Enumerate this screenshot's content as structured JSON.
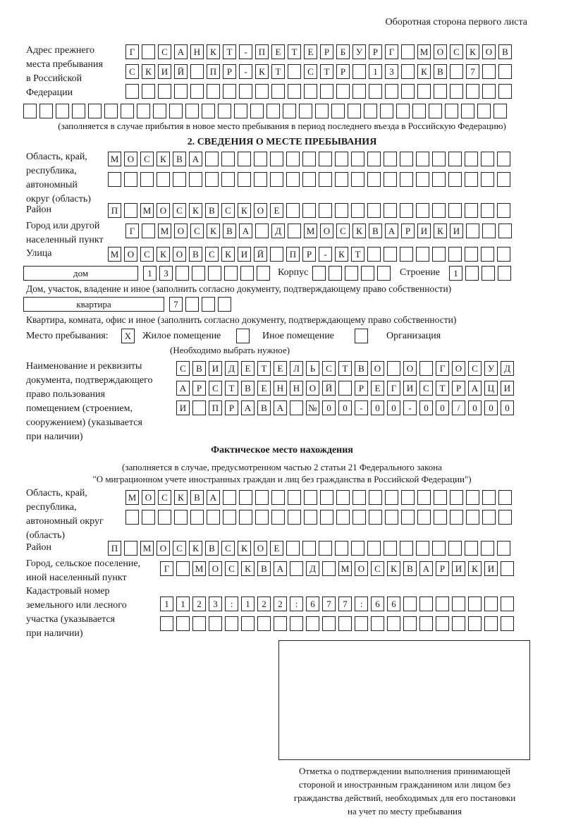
{
  "header": {
    "page_side": "Оборотная сторона первого листа"
  },
  "previous_address": {
    "label": [
      "Адрес прежнего",
      "места пребывания",
      "в Российской",
      "Федерации"
    ],
    "rows": [
      [
        "Г",
        "",
        "С",
        "А",
        "Н",
        "К",
        "Т",
        "-",
        "П",
        "Е",
        "Т",
        "Е",
        "Р",
        "Б",
        "У",
        "Р",
        "Г",
        "",
        "М",
        "О",
        "С",
        "К",
        "О",
        "В"
      ],
      [
        "С",
        "К",
        "И",
        "Й",
        "",
        "П",
        "Р",
        "-",
        "К",
        "Т",
        "",
        "С",
        "Т",
        "Р",
        "",
        "1",
        "3",
        "",
        "К",
        "В",
        "",
        "7",
        "",
        ""
      ],
      [
        "",
        "",
        "",
        "",
        "",
        "",
        "",
        "",
        "",
        "",
        "",
        "",
        "",
        "",
        "",
        "",
        "",
        "",
        "",
        "",
        "",
        "",
        "",
        ""
      ],
      [
        "",
        "",
        "",
        "",
        "",
        "",
        "",
        "",
        "",
        "",
        "",
        "",
        "",
        "",
        "",
        "",
        "",
        "",
        "",
        "",
        "",
        "",
        "",
        "",
        "",
        "",
        "",
        "",
        "",
        ""
      ]
    ],
    "note": "(заполняется в случае прибытия в новое место пребывания в период последнего въезда в Российскую Федерацию)"
  },
  "section2": {
    "title": "2. СВЕДЕНИЯ О МЕСТЕ ПРЕБЫВАНИЯ",
    "region_label": [
      "Область, край,",
      "республика,",
      "автономный",
      "округ (область)"
    ],
    "region_rows": [
      [
        "М",
        "О",
        "С",
        "К",
        "В",
        "А",
        "",
        "",
        "",
        "",
        "",
        "",
        "",
        "",
        "",
        "",
        "",
        "",
        "",
        "",
        "",
        "",
        "",
        "",
        ""
      ],
      [
        "",
        "",
        "",
        "",
        "",
        "",
        "",
        "",
        "",
        "",
        "",
        "",
        "",
        "",
        "",
        "",
        "",
        "",
        "",
        "",
        "",
        "",
        "",
        "",
        ""
      ]
    ],
    "district_label": "Район",
    "district": [
      "П",
      "",
      "М",
      "О",
      "С",
      "К",
      "В",
      "С",
      "К",
      "О",
      "Е",
      "",
      "",
      "",
      "",
      "",
      "",
      "",
      "",
      "",
      "",
      "",
      "",
      "",
      ""
    ],
    "city_label": [
      "Город или другой",
      "населенный пункт"
    ],
    "city": [
      "Г",
      "",
      "М",
      "О",
      "С",
      "К",
      "В",
      "А",
      "",
      "Д",
      "",
      "М",
      "О",
      "С",
      "К",
      "В",
      "А",
      "Р",
      "И",
      "К",
      "И",
      "",
      "",
      ""
    ],
    "street_label": "Улица",
    "street": [
      "М",
      "О",
      "С",
      "К",
      "О",
      "В",
      "С",
      "К",
      "И",
      "Й",
      "",
      "П",
      "Р",
      "-",
      "К",
      "Т",
      "",
      "",
      "",
      "",
      "",
      "",
      "",
      "",
      ""
    ],
    "house_type": "дом",
    "house": [
      "1",
      "3",
      "",
      "",
      "",
      "",
      "",
      ""
    ],
    "korpus_label": "Корпус",
    "korpus": [
      "",
      "",
      "",
      "",
      ""
    ],
    "building_label": "Строение",
    "building": [
      "1",
      "",
      "",
      ""
    ],
    "house_note": "Дом, участок, владение и иное (заполнить согласно документу, подтверждающему право собственности)",
    "flat_type": "квартира",
    "flat": [
      "7",
      "",
      "",
      ""
    ],
    "flat_note": "Квартира, комната, офис и иное (заполнить согласно документу, подтверждающему право собственности)",
    "stay_label": "Место пребывания:",
    "stay_options": [
      {
        "label": "Жилое помещение",
        "mark": "X"
      },
      {
        "label": "Иное помещение",
        "mark": ""
      },
      {
        "label": "Организация",
        "mark": ""
      }
    ],
    "stay_note": "(Необходимо выбрать нужное)",
    "doc_label": [
      "Наименование и реквизиты",
      "документа, подтверждающего",
      "право пользования",
      "помещением (строением,",
      "сооружением) (указывается",
      "при наличии)"
    ],
    "doc_rows": [
      [
        "С",
        "В",
        "И",
        "Д",
        "Е",
        "Т",
        "Е",
        "Л",
        "Ь",
        "С",
        "Т",
        "В",
        "О",
        "",
        "О",
        "",
        "Г",
        "О",
        "С",
        "У",
        "Д"
      ],
      [
        "А",
        "Р",
        "С",
        "Т",
        "В",
        "Е",
        "Н",
        "Н",
        "О",
        "Й",
        "",
        "Р",
        "Е",
        "Г",
        "И",
        "С",
        "Т",
        "Р",
        "А",
        "Ц",
        "И"
      ],
      [
        "И",
        "",
        "П",
        "Р",
        "А",
        "В",
        "А",
        "",
        "№",
        "0",
        "0",
        "-",
        "0",
        "0",
        "-",
        "0",
        "0",
        "/",
        "0",
        "0",
        "0"
      ]
    ]
  },
  "actual": {
    "title": "Фактическое место нахождения",
    "note": [
      "(заполняется в случае, предусмотренном частью 2 статьи 21 Федерального закона",
      "\"О миграционном учете иностранных граждан и лиц без гражданства в Российской Федерации\")"
    ],
    "region_label": [
      "Область, край,",
      "республика,",
      "автономный округ",
      "(область)"
    ],
    "region_rows": [
      [
        "М",
        "О",
        "С",
        "К",
        "В",
        "А",
        "",
        "",
        "",
        "",
        "",
        "",
        "",
        "",
        "",
        "",
        "",
        "",
        "",
        "",
        "",
        "",
        "",
        ""
      ],
      [
        "",
        "",
        "",
        "",
        "",
        "",
        "",
        "",
        "",
        "",
        "",
        "",
        "",
        "",
        "",
        "",
        "",
        "",
        "",
        "",
        "",
        "",
        "",
        ""
      ]
    ],
    "district_label": "Район",
    "district": [
      "П",
      "",
      "М",
      "О",
      "С",
      "К",
      "В",
      "С",
      "К",
      "О",
      "Е",
      "",
      "",
      "",
      "",
      "",
      "",
      "",
      "",
      "",
      "",
      "",
      "",
      "",
      ""
    ],
    "city_label": [
      "Город, сельское поселение,",
      "иной населенный пункт"
    ],
    "city": [
      "Г",
      "",
      "М",
      "О",
      "С",
      "К",
      "В",
      "А",
      "",
      "Д",
      "",
      "М",
      "О",
      "С",
      "К",
      "В",
      "А",
      "Р",
      "И",
      "К",
      "И",
      ""
    ],
    "cadastre_label": [
      "Кадастровый номер",
      "земельного или лесного",
      "участка (указывается",
      "при наличии)"
    ],
    "cadastre_rows": [
      [
        "1",
        "1",
        "2",
        "3",
        ":",
        "1",
        "2",
        "2",
        ":",
        "6",
        "7",
        "7",
        ":",
        "6",
        "6",
        "",
        "",
        "",
        "",
        "",
        "",
        ""
      ],
      [
        "",
        "",
        "",
        "",
        "",
        "",
        "",
        "",
        "",
        "",
        "",
        "",
        "",
        "",
        "",
        "",
        "",
        "",
        "",
        "",
        "",
        ""
      ]
    ]
  },
  "confirmation": {
    "caption": [
      "Отметка о подтверждении выполнения принимающей",
      "стороной и иностранным гражданином или лицом без",
      "гражданства действий, необходимых для его постановки",
      "на учет по месту пребывания"
    ]
  }
}
